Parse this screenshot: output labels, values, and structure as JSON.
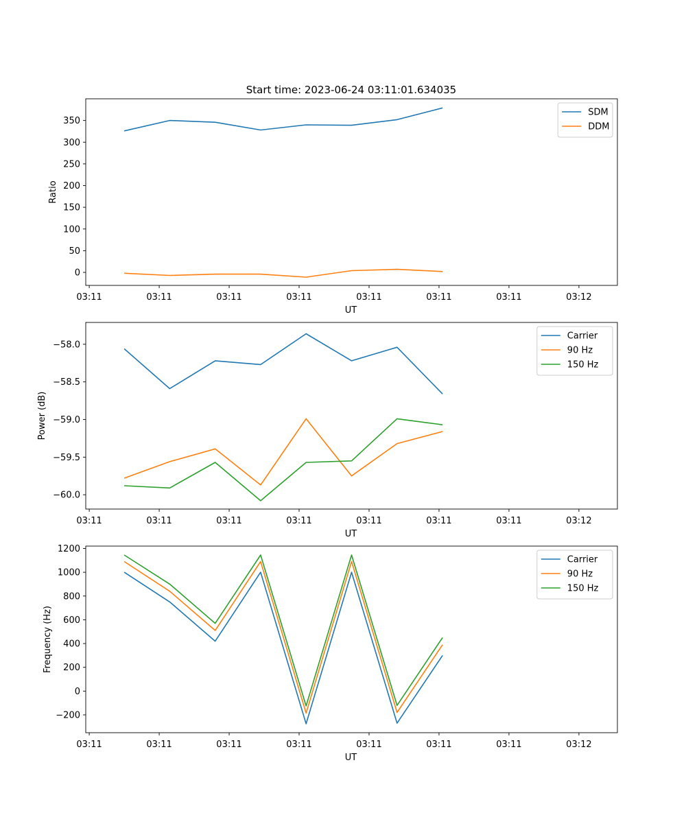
{
  "figure": {
    "title": "Start time: 2023-06-24 03:11:01.634035"
  },
  "chart_data": [
    {
      "type": "line",
      "xlabel": "UT",
      "ylabel": "Ratio",
      "x_tick_labels": [
        "03:11",
        "03:11",
        "03:11",
        "03:11",
        "03:11",
        "03:11",
        "03:11",
        "03:12"
      ],
      "x_ticks_seconds": [
        0,
        2,
        4,
        6,
        8,
        10,
        12,
        14
      ],
      "x_seconds": [
        1,
        2.3,
        3.6,
        4.9,
        6.2,
        7.5,
        8.8,
        10.1
      ],
      "ylim": [
        -30,
        400
      ],
      "yticks": [
        0,
        50,
        100,
        150,
        200,
        250,
        300,
        350
      ],
      "legend_position": "top-right",
      "series": [
        {
          "name": "SDM",
          "color": "#1f77b4",
          "values": [
            326,
            350,
            346,
            328,
            340,
            339,
            352,
            379
          ]
        },
        {
          "name": "DDM",
          "color": "#ff7f0e",
          "values": [
            -2,
            -7,
            -4,
            -4,
            -11,
            4,
            7,
            2
          ]
        }
      ]
    },
    {
      "type": "line",
      "xlabel": "UT",
      "ylabel": "Power (dB)",
      "x_tick_labels": [
        "03:11",
        "03:11",
        "03:11",
        "03:11",
        "03:11",
        "03:11",
        "03:11",
        "03:12"
      ],
      "x_ticks_seconds": [
        0,
        2,
        4,
        6,
        8,
        10,
        12,
        14
      ],
      "x_seconds": [
        1,
        2.3,
        3.6,
        4.9,
        6.2,
        7.5,
        8.8,
        10.1
      ],
      "ylim": [
        -60.19,
        -57.71
      ],
      "yticks": [
        -60.0,
        -59.5,
        -59.0,
        -58.5,
        -58.0
      ],
      "ytick_labels": [
        "−60.0",
        "−59.5",
        "−59.0",
        "−58.5",
        "−58.0"
      ],
      "legend_position": "top-right",
      "series": [
        {
          "name": "Carrier",
          "color": "#1f77b4",
          "values": [
            -58.06,
            -58.59,
            -58.22,
            -58.27,
            -57.86,
            -58.22,
            -58.04,
            -58.66
          ]
        },
        {
          "name": "90 Hz",
          "color": "#ff7f0e",
          "values": [
            -59.78,
            -59.56,
            -59.39,
            -59.87,
            -58.99,
            -59.75,
            -59.32,
            -59.16
          ]
        },
        {
          "name": "150 Hz",
          "color": "#2ca02c",
          "values": [
            -59.88,
            -59.91,
            -59.57,
            -60.08,
            -59.57,
            -59.55,
            -58.99,
            -59.07
          ]
        }
      ]
    },
    {
      "type": "line",
      "xlabel": "UT",
      "ylabel": "Frequency (Hz)",
      "x_tick_labels": [
        "03:11",
        "03:11",
        "03:11",
        "03:11",
        "03:11",
        "03:11",
        "03:11",
        "03:12"
      ],
      "x_ticks_seconds": [
        0,
        2,
        4,
        6,
        8,
        10,
        12,
        14
      ],
      "x_seconds": [
        1,
        2.3,
        3.6,
        4.9,
        6.2,
        7.5,
        8.8,
        10.1
      ],
      "ylim": [
        -350,
        1220
      ],
      "yticks": [
        -200,
        0,
        200,
        400,
        600,
        800,
        1000,
        1200
      ],
      "ytick_labels": [
        "−200",
        "0",
        "200",
        "400",
        "600",
        "800",
        "1000",
        "1200"
      ],
      "legend_position": "top-right",
      "series": [
        {
          "name": "Carrier",
          "color": "#1f77b4",
          "values": [
            1000,
            750,
            420,
            1000,
            -275,
            1000,
            -270,
            300
          ]
        },
        {
          "name": "90 Hz",
          "color": "#ff7f0e",
          "values": [
            1090,
            840,
            510,
            1090,
            -185,
            1090,
            -180,
            390
          ]
        },
        {
          "name": "150 Hz",
          "color": "#2ca02c",
          "values": [
            1145,
            900,
            570,
            1145,
            -125,
            1145,
            -120,
            450
          ]
        }
      ]
    }
  ]
}
